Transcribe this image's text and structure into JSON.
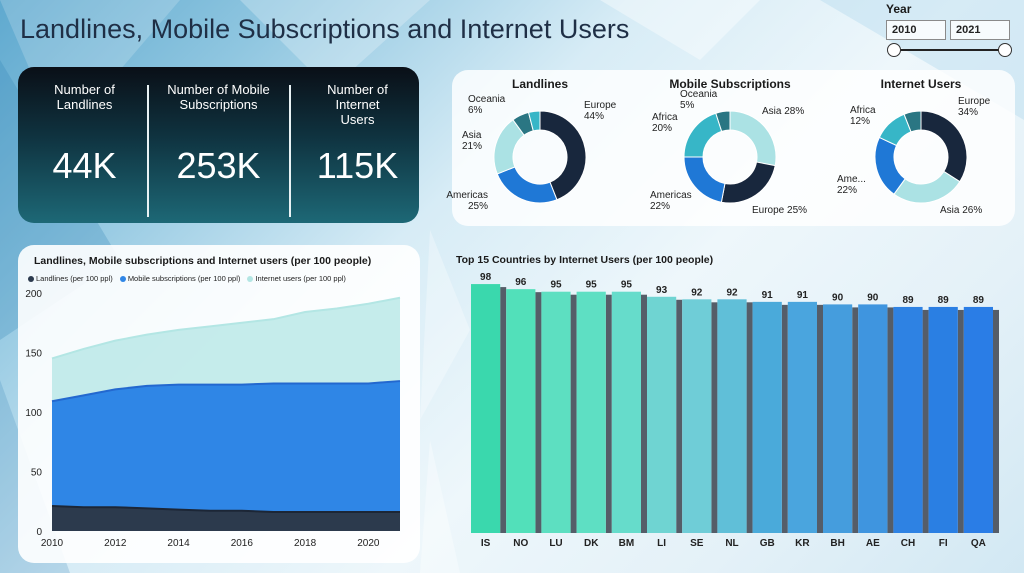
{
  "title": "Landlines, Mobile Subscriptions and Internet Users",
  "slicer": {
    "label": "Year",
    "from": "2010",
    "to": "2021"
  },
  "kpis": [
    {
      "label": "Number of Landlines",
      "value": "44K"
    },
    {
      "label": "Number of Mobile Subscriptions",
      "value": "253K"
    },
    {
      "label": "Number of Internet Users",
      "value": "115K"
    }
  ],
  "colors": {
    "europe": "#18273d",
    "americas": "#1f78d6",
    "asia": "#abe2e4",
    "oceania": "#2a7683",
    "africa": "#37b6c7",
    "landlines": "#2c3a4d",
    "mobile": "#2f86e6",
    "internet": "#b3e6e4"
  },
  "chart_data": [
    {
      "type": "pie",
      "title": "Landlines",
      "slices": [
        {
          "name": "Europe",
          "value": 44,
          "label": "Europe\n44%"
        },
        {
          "name": "Americas",
          "value": 25,
          "label": "Americas\n25%"
        },
        {
          "name": "Asia",
          "value": 21,
          "label": "Asia\n21%"
        },
        {
          "name": "Oceania",
          "value": 6,
          "label": "Oceania\n6%"
        },
        {
          "name": "Africa",
          "value": 4,
          "label": ""
        }
      ]
    },
    {
      "type": "pie",
      "title": "Mobile Subscriptions",
      "slices": [
        {
          "name": "Asia",
          "value": 28,
          "label": "Asia 28%"
        },
        {
          "name": "Europe",
          "value": 25,
          "label": "Europe 25%"
        },
        {
          "name": "Americas",
          "value": 22,
          "label": "Americas\n22%"
        },
        {
          "name": "Africa",
          "value": 20,
          "label": "Africa\n20%"
        },
        {
          "name": "Oceania",
          "value": 5,
          "label": "Oceania\n5%"
        }
      ]
    },
    {
      "type": "pie",
      "title": "Internet Users",
      "slices": [
        {
          "name": "Europe",
          "value": 34,
          "label": "Europe\n34%"
        },
        {
          "name": "Asia",
          "value": 26,
          "label": "Asia 26%"
        },
        {
          "name": "Americas",
          "value": 22,
          "label": "Ame...\n22%"
        },
        {
          "name": "Africa",
          "value": 12,
          "label": "Africa\n12%"
        },
        {
          "name": "Oceania",
          "value": 6,
          "label": ""
        }
      ]
    },
    {
      "type": "area",
      "title": "Landlines, Mobile subscriptions and Internet users (per 100 people)",
      "legend": [
        "Landlines (per 100 ppl)",
        "Mobile subscriptions (per 100 ppl)",
        "Internet users (per 100 ppl)"
      ],
      "x": [
        2010,
        2011,
        2012,
        2013,
        2014,
        2015,
        2016,
        2017,
        2018,
        2019,
        2020,
        2021
      ],
      "series": [
        {
          "name": "Landlines (per 100 ppl)",
          "values": [
            21,
            20,
            20,
            19,
            18,
            17,
            17,
            16,
            16,
            16,
            16,
            16
          ]
        },
        {
          "name": "Mobile subscriptions (per 100 ppl)",
          "values": [
            109,
            114,
            119,
            122,
            123,
            123,
            123,
            124,
            124,
            124,
            124,
            126
          ]
        },
        {
          "name": "Internet users (per 100 ppl)",
          "values": [
            145,
            153,
            160,
            165,
            169,
            172,
            175,
            178,
            184,
            187,
            191,
            196
          ]
        }
      ],
      "xticks": [
        "2010",
        "2012",
        "2014",
        "2016",
        "2018",
        "2020"
      ],
      "yticks": [
        "0",
        "50",
        "100",
        "150",
        "200"
      ],
      "ylim": [
        0,
        200
      ],
      "xlim": [
        2010,
        2021
      ]
    },
    {
      "type": "bar",
      "title": "Top 15 Countries by Internet Users (per 100 people)",
      "categories": [
        "IS",
        "NO",
        "LU",
        "DK",
        "BM",
        "LI",
        "SE",
        "NL",
        "GB",
        "KR",
        "BH",
        "AE",
        "CH",
        "FI",
        "QA"
      ],
      "values": [
        98,
        96,
        95,
        95,
        95,
        93,
        92,
        92,
        91,
        91,
        90,
        90,
        89,
        89,
        89
      ],
      "colors": [
        "#3ad8ad",
        "#52e0ba",
        "#5ddfc1",
        "#5edfc3",
        "#66dccb",
        "#6fd4d2",
        "#6fcdd7",
        "#60bfd8",
        "#4aaada",
        "#4aa5de",
        "#459ddd",
        "#3f95df",
        "#2e82e3",
        "#2a7fe3",
        "#2a7de6"
      ]
    }
  ]
}
